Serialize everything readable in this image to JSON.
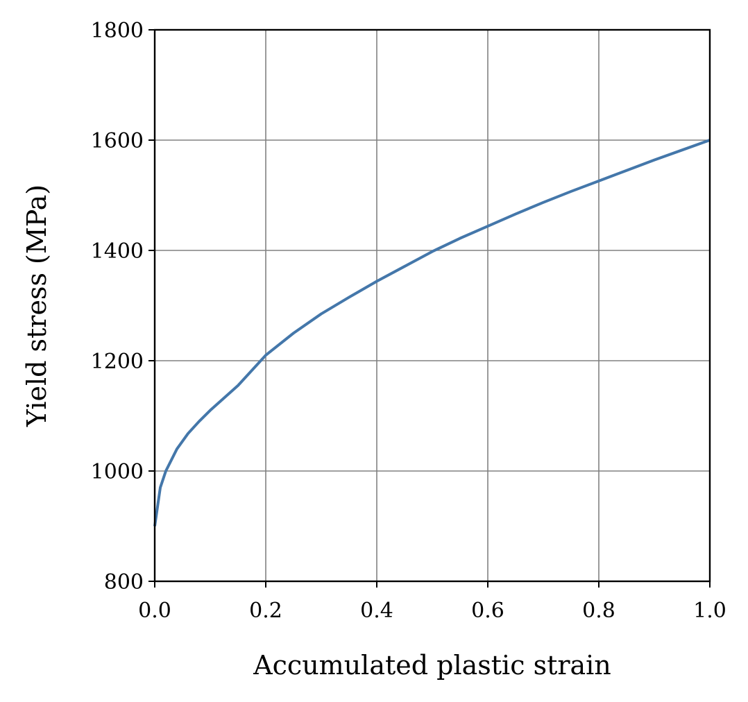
{
  "chart_data": {
    "type": "line",
    "title": "",
    "xlabel": "Accumulated plastic strain",
    "ylabel": "Yield stress (MPa)",
    "xlim": [
      0.0,
      1.0
    ],
    "ylim": [
      800,
      1800
    ],
    "x_ticks": [
      "0.0",
      "0.2",
      "0.4",
      "0.6",
      "0.8",
      "1.0"
    ],
    "y_ticks": [
      "800",
      "1000",
      "1200",
      "1400",
      "1600",
      "1800"
    ],
    "grid": true,
    "line_color": "#4477aa",
    "series": [
      {
        "x": [
          0.0,
          0.01,
          0.02,
          0.04,
          0.06,
          0.08,
          0.1,
          0.15,
          0.2,
          0.25,
          0.3,
          0.35,
          0.4,
          0.45,
          0.5,
          0.55,
          0.6,
          0.65,
          0.7,
          0.75,
          0.8,
          0.85,
          0.9,
          0.95,
          1.0
        ],
        "y": [
          900,
          970,
          1000,
          1040,
          1068,
          1090,
          1110,
          1155,
          1210,
          1250,
          1285,
          1315,
          1344,
          1371,
          1398,
          1422,
          1444,
          1466,
          1487,
          1507,
          1526,
          1545,
          1564,
          1582,
          1600
        ]
      }
    ]
  }
}
